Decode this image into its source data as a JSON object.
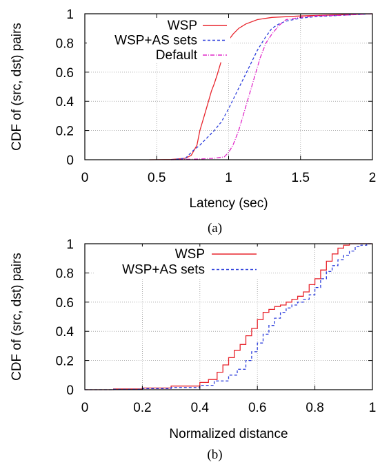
{
  "chart_data": [
    {
      "type": "line",
      "caption": "(a)",
      "xlabel": "Latency (sec)",
      "ylabel": "CDF of (src, dst) pairs",
      "xlim": [
        0,
        2
      ],
      "ylim": [
        0,
        1
      ],
      "x_ticks": [
        "0",
        "0.5",
        "1",
        "1.5",
        "2"
      ],
      "y_ticks": [
        "0",
        "0.2",
        "0.4",
        "0.6",
        "0.8",
        "1"
      ],
      "grid": true,
      "legend_position": "top-right",
      "series": [
        {
          "name": "WSP",
          "color": "#e8242c",
          "dash": "solid",
          "points": [
            [
              0.45,
              0
            ],
            [
              0.6,
              0.002
            ],
            [
              0.7,
              0.01
            ],
            [
              0.74,
              0.03
            ],
            [
              0.78,
              0.1
            ],
            [
              0.8,
              0.2
            ],
            [
              0.83,
              0.3
            ],
            [
              0.86,
              0.4
            ],
            [
              0.88,
              0.47
            ],
            [
              0.9,
              0.52
            ],
            [
              0.92,
              0.58
            ],
            [
              0.95,
              0.68
            ],
            [
              0.98,
              0.78
            ],
            [
              1.0,
              0.82
            ],
            [
              1.03,
              0.86
            ],
            [
              1.07,
              0.9
            ],
            [
              1.12,
              0.93
            ],
            [
              1.2,
              0.96
            ],
            [
              1.3,
              0.975
            ],
            [
              1.5,
              0.985
            ],
            [
              2.0,
              1.0
            ]
          ]
        },
        {
          "name": "WSP+AS sets",
          "color": "#2c3edc",
          "dash": "4,3",
          "points": [
            [
              0.6,
              0
            ],
            [
              0.7,
              0.01
            ],
            [
              0.75,
              0.06
            ],
            [
              0.8,
              0.1
            ],
            [
              0.85,
              0.15
            ],
            [
              0.9,
              0.2
            ],
            [
              0.95,
              0.26
            ],
            [
              1.0,
              0.35
            ],
            [
              1.05,
              0.45
            ],
            [
              1.1,
              0.55
            ],
            [
              1.15,
              0.65
            ],
            [
              1.2,
              0.75
            ],
            [
              1.25,
              0.83
            ],
            [
              1.3,
              0.9
            ],
            [
              1.35,
              0.93
            ],
            [
              1.4,
              0.95
            ],
            [
              1.5,
              0.97
            ],
            [
              1.6,
              0.98
            ],
            [
              1.8,
              0.99
            ],
            [
              2.0,
              1.0
            ]
          ]
        },
        {
          "name": "Default",
          "color": "#e026c8",
          "dash": "6,2,1,2",
          "points": [
            [
              0.6,
              0
            ],
            [
              0.8,
              0.005
            ],
            [
              0.9,
              0.01
            ],
            [
              0.97,
              0.02
            ],
            [
              1.0,
              0.05
            ],
            [
              1.03,
              0.1
            ],
            [
              1.07,
              0.2
            ],
            [
              1.1,
              0.3
            ],
            [
              1.13,
              0.4
            ],
            [
              1.16,
              0.5
            ],
            [
              1.19,
              0.6
            ],
            [
              1.22,
              0.7
            ],
            [
              1.26,
              0.8
            ],
            [
              1.3,
              0.86
            ],
            [
              1.35,
              0.92
            ],
            [
              1.4,
              0.96
            ],
            [
              1.5,
              0.975
            ],
            [
              1.6,
              0.985
            ],
            [
              1.8,
              0.99
            ],
            [
              2.0,
              1.0
            ]
          ]
        }
      ]
    },
    {
      "type": "line",
      "caption": "(b)",
      "xlabel": "Normalized distance",
      "ylabel": "CDF of (src, dst) pairs",
      "xlim": [
        0,
        1
      ],
      "ylim": [
        0,
        1
      ],
      "x_ticks": [
        "0",
        "0.2",
        "0.4",
        "0.6",
        "0.8",
        "1"
      ],
      "y_ticks": [
        "0",
        "0.2",
        "0.4",
        "0.6",
        "0.8",
        "1"
      ],
      "grid": true,
      "legend_position": "top-right",
      "series": [
        {
          "name": "WSP",
          "color": "#e8242c",
          "dash": "solid",
          "step": true,
          "points": [
            [
              0.0,
              0.0
            ],
            [
              0.1,
              0.005
            ],
            [
              0.2,
              0.012
            ],
            [
              0.3,
              0.025
            ],
            [
              0.4,
              0.05
            ],
            [
              0.43,
              0.07
            ],
            [
              0.46,
              0.12
            ],
            [
              0.48,
              0.17
            ],
            [
              0.5,
              0.22
            ],
            [
              0.52,
              0.27
            ],
            [
              0.54,
              0.31
            ],
            [
              0.56,
              0.37
            ],
            [
              0.58,
              0.42
            ],
            [
              0.6,
              0.48
            ],
            [
              0.62,
              0.53
            ],
            [
              0.64,
              0.55
            ],
            [
              0.66,
              0.57
            ],
            [
              0.68,
              0.58
            ],
            [
              0.7,
              0.6
            ],
            [
              0.72,
              0.62
            ],
            [
              0.74,
              0.64
            ],
            [
              0.76,
              0.67
            ],
            [
              0.78,
              0.72
            ],
            [
              0.8,
              0.76
            ],
            [
              0.82,
              0.82
            ],
            [
              0.84,
              0.88
            ],
            [
              0.86,
              0.93
            ],
            [
              0.88,
              0.97
            ],
            [
              0.9,
              0.99
            ],
            [
              0.92,
              1.0
            ],
            [
              1.0,
              1.0
            ]
          ]
        },
        {
          "name": "WSP+AS sets",
          "color": "#2c3edc",
          "dash": "4,3",
          "step": true,
          "points": [
            [
              0.0,
              0.0
            ],
            [
              0.1,
              0.003
            ],
            [
              0.2,
              0.008
            ],
            [
              0.3,
              0.015
            ],
            [
              0.4,
              0.03
            ],
            [
              0.45,
              0.06
            ],
            [
              0.5,
              0.1
            ],
            [
              0.53,
              0.14
            ],
            [
              0.56,
              0.2
            ],
            [
              0.58,
              0.26
            ],
            [
              0.6,
              0.32
            ],
            [
              0.62,
              0.38
            ],
            [
              0.64,
              0.44
            ],
            [
              0.66,
              0.49
            ],
            [
              0.68,
              0.53
            ],
            [
              0.7,
              0.56
            ],
            [
              0.72,
              0.58
            ],
            [
              0.74,
              0.6
            ],
            [
              0.76,
              0.62
            ],
            [
              0.78,
              0.65
            ],
            [
              0.8,
              0.7
            ],
            [
              0.82,
              0.76
            ],
            [
              0.84,
              0.81
            ],
            [
              0.86,
              0.85
            ],
            [
              0.88,
              0.89
            ],
            [
              0.9,
              0.92
            ],
            [
              0.92,
              0.95
            ],
            [
              0.94,
              0.98
            ],
            [
              0.96,
              0.99
            ],
            [
              0.98,
              1.0
            ],
            [
              1.0,
              1.0
            ]
          ]
        }
      ]
    }
  ]
}
